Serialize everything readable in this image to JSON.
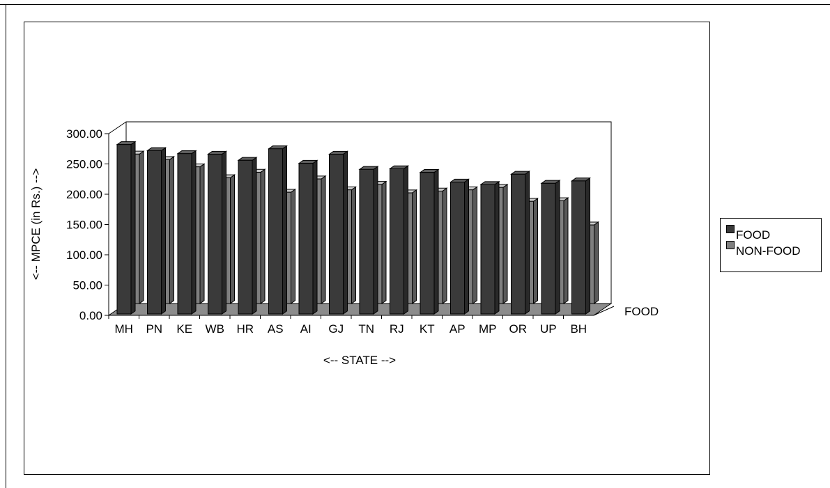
{
  "chart_data": {
    "type": "bar",
    "title": "",
    "xlabel": "<-- STATE -->",
    "ylabel": "<-- MPCE (in Rs.) -->",
    "ylim": [
      0,
      300
    ],
    "y_ticks": [
      "0.00",
      "50.00",
      "100.00",
      "150.00",
      "200.00",
      "250.00",
      "300.00"
    ],
    "depth_axis_label": "FOOD",
    "categories": [
      "MH",
      "PN",
      "KE",
      "WB",
      "HR",
      "AS",
      "AI",
      "GJ",
      "TN",
      "RJ",
      "KT",
      "AP",
      "MP",
      "OR",
      "UP",
      "BH"
    ],
    "series": [
      {
        "name": "FOOD",
        "color": "#3a3a3a",
        "values": [
          282,
          272,
          267,
          266,
          256,
          275,
          251,
          266,
          241,
          242,
          236,
          220,
          216,
          233,
          218,
          222
        ]
      },
      {
        "name": "NON-FOOD",
        "color": "#7f7f7f",
        "values": [
          249,
          240,
          228,
          210,
          219,
          186,
          208,
          190,
          199,
          185,
          188,
          190,
          194,
          171,
          172,
          132
        ]
      }
    ],
    "legend_position": "right",
    "grid": false
  }
}
